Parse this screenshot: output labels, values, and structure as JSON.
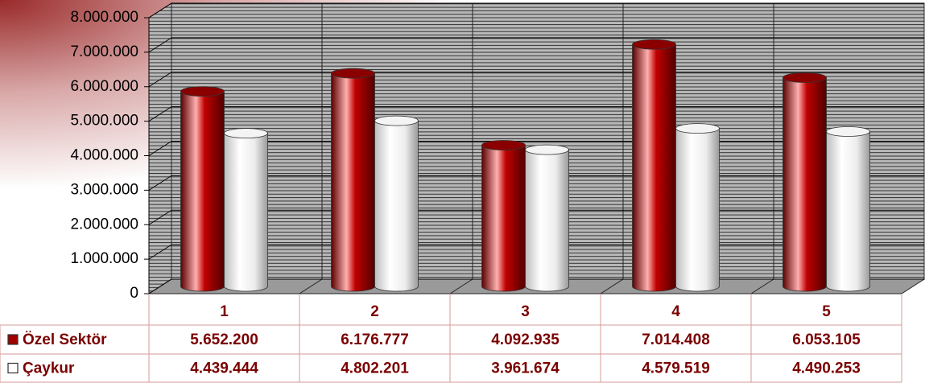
{
  "chart_data": {
    "type": "bar",
    "categories": [
      "1",
      "2",
      "3",
      "4",
      "5"
    ],
    "series": [
      {
        "name": "Özel Sektör",
        "color": "#a00000",
        "values": [
          5652200,
          6176777,
          4092935,
          7014408,
          6053105
        ],
        "value_labels": [
          "5.652.200",
          "6.176.777",
          "4.092.935",
          "7.014.408",
          "6.053.105"
        ]
      },
      {
        "name": "Çaykur",
        "color": "#ffffff",
        "values": [
          4439444,
          4802201,
          3961674,
          4579519,
          4490253
        ],
        "value_labels": [
          "4.439.444",
          "4.802.201",
          "3.961.674",
          "4.579.519",
          "4.490.253"
        ]
      }
    ],
    "ylim": [
      0,
      8000000
    ],
    "yticks": [
      0,
      {
        "value": 1000000,
        "label": "1.000.000"
      },
      {
        "value": 2000000,
        "label": "2.000.000"
      },
      {
        "value": 3000000,
        "label": "3.000.000"
      },
      {
        "value": 4000000,
        "label": "4.000.000"
      },
      {
        "value": 5000000,
        "label": "5.000.000"
      },
      {
        "value": 6000000,
        "label": "6.000.000"
      },
      {
        "value": 7000000,
        "label": "7.000.000"
      },
      {
        "value": 8000000,
        "label": "8.000.000"
      }
    ],
    "grid": true
  }
}
